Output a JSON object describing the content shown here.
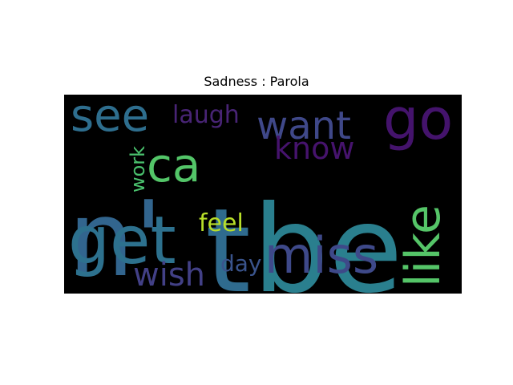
{
  "chart_data": {
    "type": "wordcloud",
    "title": "Sadness : Parola",
    "background": "#000000",
    "words": [
      {
        "text": "be",
        "color": "#2a7f8e"
      },
      {
        "text": "t",
        "color": "#2f6b8e"
      },
      {
        "text": "n'",
        "color": "#32658e"
      },
      {
        "text": "get",
        "color": "#2d718e"
      },
      {
        "text": "go",
        "color": "#44136c"
      },
      {
        "text": "miss",
        "color": "#3e4989"
      },
      {
        "text": "like",
        "color": "#55c568"
      },
      {
        "text": "see",
        "color": "#2e6e8e"
      },
      {
        "text": "want",
        "color": "#3f4889"
      },
      {
        "text": "ca",
        "color": "#53c568"
      },
      {
        "text": "know",
        "color": "#46136d"
      },
      {
        "text": "wish",
        "color": "#424086"
      },
      {
        "text": "laugh",
        "color": "#482475"
      },
      {
        "text": "feel",
        "color": "#b8de29"
      },
      {
        "text": "day",
        "color": "#3a548c"
      },
      {
        "text": "work",
        "color": "#4ac16d"
      }
    ]
  }
}
